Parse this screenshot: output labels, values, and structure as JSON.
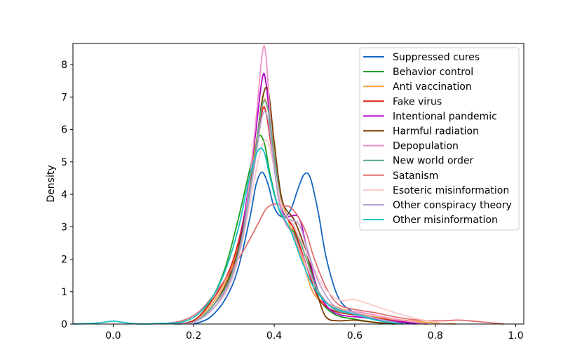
{
  "chart_data": {
    "type": "line",
    "subtype": "kde-density",
    "title": "",
    "xlabel": "",
    "ylabel": "Density",
    "xlim": [
      -0.1,
      1.02
    ],
    "ylim": [
      0,
      8.65
    ],
    "xticks": [
      0.0,
      0.2,
      0.4,
      0.6,
      0.8,
      1.0
    ],
    "xtick_labels": [
      "0.0",
      "0.2",
      "0.4",
      "0.6",
      "0.8",
      "1.0"
    ],
    "yticks": [
      0,
      1,
      2,
      3,
      4,
      5,
      6,
      7,
      8
    ],
    "ytick_labels": [
      "0",
      "1",
      "2",
      "3",
      "4",
      "5",
      "6",
      "7",
      "8"
    ],
    "grid": false,
    "legend_position": "top-right",
    "series": [
      {
        "name": "Suppressed cures",
        "color": "#1565c0",
        "points": [
          [
            0.2,
            0
          ],
          [
            0.24,
            0.2
          ],
          [
            0.28,
            0.8
          ],
          [
            0.31,
            1.7
          ],
          [
            0.34,
            3.3
          ],
          [
            0.355,
            4.3
          ],
          [
            0.37,
            4.68
          ],
          [
            0.385,
            4.3
          ],
          [
            0.4,
            3.6
          ],
          [
            0.42,
            3.3
          ],
          [
            0.44,
            3.5
          ],
          [
            0.46,
            4.2
          ],
          [
            0.475,
            4.62
          ],
          [
            0.49,
            4.5
          ],
          [
            0.51,
            3.4
          ],
          [
            0.53,
            2.0
          ],
          [
            0.56,
            0.8
          ],
          [
            0.6,
            0.35
          ],
          [
            0.65,
            0.2
          ],
          [
            0.7,
            0.08
          ],
          [
            0.75,
            0
          ]
        ]
      },
      {
        "name": "Behavior control",
        "color": "#1a9e1a",
        "points": [
          [
            0.17,
            0
          ],
          [
            0.21,
            0.2
          ],
          [
            0.25,
            0.9
          ],
          [
            0.28,
            1.8
          ],
          [
            0.31,
            3.2
          ],
          [
            0.34,
            4.8
          ],
          [
            0.36,
            5.75
          ],
          [
            0.375,
            5.6
          ],
          [
            0.39,
            4.6
          ],
          [
            0.41,
            3.6
          ],
          [
            0.43,
            3.1
          ],
          [
            0.45,
            2.8
          ],
          [
            0.48,
            1.8
          ],
          [
            0.51,
            0.8
          ],
          [
            0.55,
            0.3
          ],
          [
            0.6,
            0.15
          ],
          [
            0.65,
            0.05
          ],
          [
            0.7,
            0
          ]
        ]
      },
      {
        "name": "Anti vaccination",
        "color": "#f5a142",
        "points": [
          [
            0.15,
            0
          ],
          [
            0.2,
            0.1
          ],
          [
            0.25,
            0.7
          ],
          [
            0.29,
            1.6
          ],
          [
            0.32,
            3.0
          ],
          [
            0.35,
            5.2
          ],
          [
            0.37,
            6.7
          ],
          [
            0.38,
            6.85
          ],
          [
            0.395,
            5.8
          ],
          [
            0.41,
            4.3
          ],
          [
            0.44,
            3.0
          ],
          [
            0.47,
            2.0
          ],
          [
            0.5,
            0.9
          ],
          [
            0.55,
            0.55
          ],
          [
            0.6,
            0.35
          ],
          [
            0.66,
            0.2
          ],
          [
            0.72,
            0.12
          ],
          [
            0.78,
            0.05
          ],
          [
            0.85,
            0
          ]
        ]
      },
      {
        "name": "Fake virus",
        "color": "#e02020",
        "points": [
          [
            0.15,
            0
          ],
          [
            0.2,
            0.1
          ],
          [
            0.25,
            0.8
          ],
          [
            0.29,
            1.7
          ],
          [
            0.32,
            3.0
          ],
          [
            0.35,
            5.0
          ],
          [
            0.37,
            6.55
          ],
          [
            0.38,
            6.5
          ],
          [
            0.395,
            5.3
          ],
          [
            0.42,
            3.6
          ],
          [
            0.45,
            2.9
          ],
          [
            0.48,
            1.8
          ],
          [
            0.51,
            0.8
          ],
          [
            0.55,
            0.4
          ],
          [
            0.62,
            0.25
          ],
          [
            0.7,
            0.1
          ],
          [
            0.78,
            0
          ]
        ]
      },
      {
        "name": "Intentional pandemic",
        "color": "#b000c8",
        "points": [
          [
            0.15,
            0
          ],
          [
            0.2,
            0.05
          ],
          [
            0.25,
            0.6
          ],
          [
            0.29,
            1.4
          ],
          [
            0.32,
            2.9
          ],
          [
            0.35,
            5.5
          ],
          [
            0.37,
            7.55
          ],
          [
            0.38,
            7.4
          ],
          [
            0.395,
            5.6
          ],
          [
            0.42,
            3.5
          ],
          [
            0.46,
            3.3
          ],
          [
            0.48,
            2.4
          ],
          [
            0.51,
            1.0
          ],
          [
            0.55,
            0.35
          ],
          [
            0.62,
            0.2
          ],
          [
            0.7,
            0.08
          ],
          [
            0.78,
            0
          ]
        ]
      },
      {
        "name": "Harmful radiation",
        "color": "#7a3a00",
        "points": [
          [
            0.15,
            0
          ],
          [
            0.2,
            0.05
          ],
          [
            0.25,
            0.6
          ],
          [
            0.29,
            1.5
          ],
          [
            0.32,
            2.8
          ],
          [
            0.35,
            5.0
          ],
          [
            0.37,
            6.9
          ],
          [
            0.385,
            7.2
          ],
          [
            0.4,
            5.6
          ],
          [
            0.42,
            3.8
          ],
          [
            0.45,
            3.2
          ],
          [
            0.48,
            2.2
          ],
          [
            0.51,
            0.8
          ],
          [
            0.53,
            0.2
          ],
          [
            0.56,
            0.1
          ],
          [
            0.6,
            0.12
          ],
          [
            0.65,
            0.05
          ],
          [
            0.7,
            0
          ]
        ]
      },
      {
        "name": "Depopulation",
        "color": "#f090c8",
        "points": [
          [
            0.15,
            0
          ],
          [
            0.2,
            0.05
          ],
          [
            0.25,
            0.6
          ],
          [
            0.29,
            1.3
          ],
          [
            0.32,
            2.6
          ],
          [
            0.35,
            5.7
          ],
          [
            0.37,
            8.3
          ],
          [
            0.38,
            8.2
          ],
          [
            0.395,
            5.6
          ],
          [
            0.42,
            3.4
          ],
          [
            0.45,
            2.7
          ],
          [
            0.48,
            1.8
          ],
          [
            0.51,
            1.0
          ],
          [
            0.55,
            0.5
          ],
          [
            0.62,
            0.35
          ],
          [
            0.7,
            0.15
          ],
          [
            0.78,
            0
          ]
        ]
      },
      {
        "name": "New world order",
        "color": "#5ca88a",
        "points": [
          [
            0.15,
            0
          ],
          [
            0.2,
            0.05
          ],
          [
            0.25,
            0.6
          ],
          [
            0.29,
            1.4
          ],
          [
            0.32,
            2.7
          ],
          [
            0.35,
            5.0
          ],
          [
            0.37,
            6.75
          ],
          [
            0.385,
            6.6
          ],
          [
            0.4,
            5.2
          ],
          [
            0.42,
            3.6
          ],
          [
            0.45,
            3.0
          ],
          [
            0.48,
            2.0
          ],
          [
            0.51,
            1.0
          ],
          [
            0.55,
            0.45
          ],
          [
            0.6,
            0.3
          ],
          [
            0.66,
            0.15
          ],
          [
            0.72,
            0
          ]
        ]
      },
      {
        "name": "Satanism",
        "color": "#e07070",
        "points": [
          [
            0.12,
            0
          ],
          [
            0.17,
            0.1
          ],
          [
            0.21,
            0.35
          ],
          [
            0.25,
            0.9
          ],
          [
            0.29,
            1.6
          ],
          [
            0.33,
            2.4
          ],
          [
            0.36,
            3.1
          ],
          [
            0.38,
            3.55
          ],
          [
            0.4,
            3.7
          ],
          [
            0.42,
            3.65
          ],
          [
            0.44,
            3.6
          ],
          [
            0.46,
            3.3
          ],
          [
            0.48,
            2.8
          ],
          [
            0.5,
            2.0
          ],
          [
            0.53,
            1.1
          ],
          [
            0.56,
            0.6
          ],
          [
            0.6,
            0.45
          ],
          [
            0.65,
            0.35
          ],
          [
            0.7,
            0.22
          ],
          [
            0.76,
            0.12
          ],
          [
            0.82,
            0.1
          ],
          [
            0.86,
            0.12
          ],
          [
            0.92,
            0.06
          ],
          [
            0.97,
            0
          ]
        ]
      },
      {
        "name": "Esoteric misinformation",
        "color": "#f9c8c8",
        "points": [
          [
            0.15,
            0
          ],
          [
            0.2,
            0.05
          ],
          [
            0.25,
            0.5
          ],
          [
            0.29,
            1.2
          ],
          [
            0.32,
            2.5
          ],
          [
            0.35,
            4.4
          ],
          [
            0.37,
            5.5
          ],
          [
            0.385,
            5.6
          ],
          [
            0.4,
            4.8
          ],
          [
            0.42,
            3.6
          ],
          [
            0.45,
            3.0
          ],
          [
            0.48,
            2.2
          ],
          [
            0.52,
            1.2
          ],
          [
            0.56,
            0.75
          ],
          [
            0.6,
            0.75
          ],
          [
            0.64,
            0.6
          ],
          [
            0.7,
            0.35
          ],
          [
            0.76,
            0.15
          ],
          [
            0.83,
            0
          ]
        ]
      },
      {
        "name": "Other conspiracy theory",
        "color": "#b8a0d0",
        "points": [
          [
            0.15,
            0
          ],
          [
            0.2,
            0.05
          ],
          [
            0.25,
            0.5
          ],
          [
            0.29,
            1.3
          ],
          [
            0.32,
            2.6
          ],
          [
            0.35,
            4.8
          ],
          [
            0.37,
            6.4
          ],
          [
            0.385,
            6.3
          ],
          [
            0.4,
            4.8
          ],
          [
            0.42,
            3.4
          ],
          [
            0.46,
            3.1
          ],
          [
            0.48,
            2.4
          ],
          [
            0.51,
            1.3
          ],
          [
            0.55,
            0.55
          ],
          [
            0.6,
            0.35
          ],
          [
            0.66,
            0.15
          ],
          [
            0.72,
            0
          ]
        ]
      },
      {
        "name": "Other misinformation",
        "color": "#17c0c8",
        "points": [
          [
            -0.1,
            0
          ],
          [
            -0.05,
            0.02
          ],
          [
            -0.02,
            0.06
          ],
          [
            0.0,
            0.09
          ],
          [
            0.02,
            0.06
          ],
          [
            0.05,
            0.01
          ],
          [
            0.08,
            0
          ],
          [
            0.12,
            0.02
          ],
          [
            0.17,
            0.06
          ],
          [
            0.21,
            0.3
          ],
          [
            0.25,
            0.9
          ],
          [
            0.28,
            1.7
          ],
          [
            0.31,
            2.9
          ],
          [
            0.34,
            4.6
          ],
          [
            0.36,
            5.35
          ],
          [
            0.375,
            5.3
          ],
          [
            0.39,
            4.5
          ],
          [
            0.41,
            3.6
          ],
          [
            0.44,
            2.9
          ],
          [
            0.47,
            1.9
          ],
          [
            0.5,
            1.1
          ],
          [
            0.54,
            0.55
          ],
          [
            0.6,
            0.3
          ],
          [
            0.66,
            0.1
          ],
          [
            0.72,
            0
          ]
        ]
      }
    ]
  }
}
